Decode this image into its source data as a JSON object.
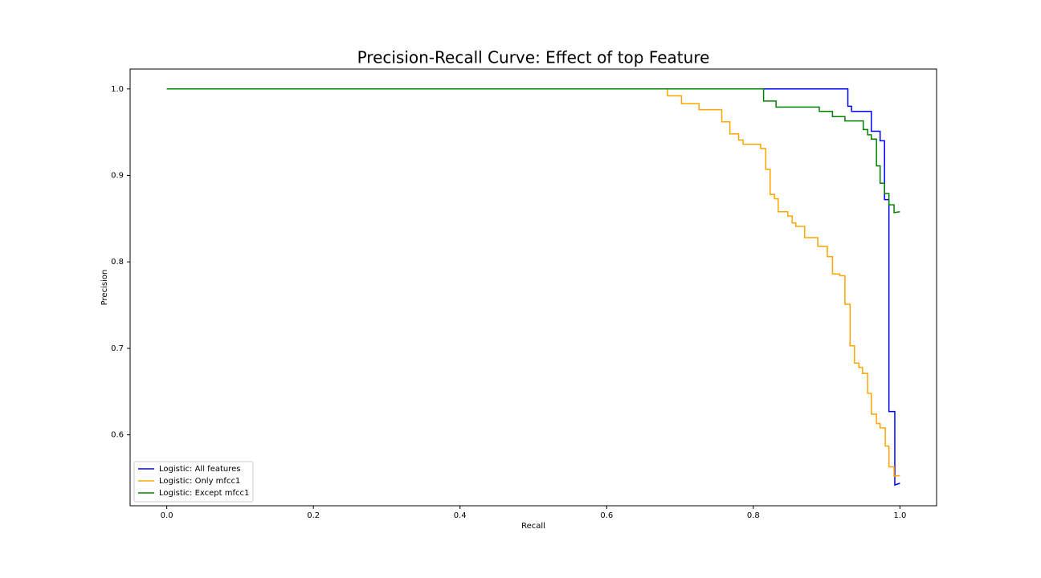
{
  "chart_data": {
    "type": "line",
    "title": "Precision-Recall Curve: Effect of top Feature",
    "x_label": "Recall",
    "y_label": "Precision",
    "xlim": [
      -0.05,
      1.05
    ],
    "ylim": [
      0.518,
      1.023
    ],
    "xticks": [
      {
        "value": 0,
        "label": "0.0"
      },
      0.2,
      0.4,
      0.6,
      0.8,
      {
        "value": 1,
        "label": "1.0"
      }
    ],
    "yticks": [
      0.6,
      0.7,
      0.8,
      0.9,
      {
        "value": 1,
        "label": "1.0"
      }
    ],
    "grid": false,
    "legend": "lower left",
    "series": [
      {
        "name": "Logistic: All features",
        "color": "#0000ff",
        "x": [
          0,
          0.929,
          0.929,
          0.934,
          0.934,
          0.961,
          0.961,
          0.973,
          0.973,
          0.979,
          0.979,
          0.985,
          0.985,
          0.993,
          0.993,
          1.0
        ],
        "values": [
          1,
          1,
          0.98,
          0.98,
          0.974,
          0.974,
          0.951,
          0.951,
          0.94,
          0.94,
          0.872,
          0.872,
          0.627,
          0.627,
          0.542,
          0.544
        ]
      },
      {
        "name": "Logistic: Only mfcc1",
        "color": "#ffa500",
        "x": [
          0,
          0.683,
          0.683,
          0.702,
          0.702,
          0.726,
          0.726,
          0.757,
          0.757,
          0.768,
          0.768,
          0.78,
          0.78,
          0.786,
          0.786,
          0.81,
          0.81,
          0.817,
          0.817,
          0.823,
          0.823,
          0.829,
          0.829,
          0.834,
          0.834,
          0.847,
          0.847,
          0.853,
          0.853,
          0.858,
          0.858,
          0.87,
          0.87,
          0.888,
          0.888,
          0.901,
          0.901,
          0.908,
          0.908,
          0.918,
          0.918,
          0.925,
          0.925,
          0.932,
          0.932,
          0.938,
          0.938,
          0.944,
          0.944,
          0.949,
          0.949,
          0.956,
          0.956,
          0.961,
          0.961,
          0.968,
          0.968,
          0.973,
          0.973,
          0.98,
          0.98,
          0.985,
          0.985,
          0.992,
          0.992,
          1.0
        ],
        "values": [
          1,
          1,
          0.992,
          0.992,
          0.983,
          0.983,
          0.976,
          0.976,
          0.962,
          0.962,
          0.948,
          0.948,
          0.941,
          0.941,
          0.936,
          0.936,
          0.931,
          0.931,
          0.907,
          0.907,
          0.878,
          0.878,
          0.873,
          0.873,
          0.858,
          0.858,
          0.853,
          0.853,
          0.845,
          0.845,
          0.841,
          0.841,
          0.828,
          0.828,
          0.818,
          0.818,
          0.806,
          0.806,
          0.786,
          0.786,
          0.784,
          0.784,
          0.751,
          0.751,
          0.703,
          0.703,
          0.683,
          0.683,
          0.678,
          0.678,
          0.671,
          0.671,
          0.648,
          0.648,
          0.624,
          0.624,
          0.613,
          0.613,
          0.608,
          0.608,
          0.587,
          0.587,
          0.563,
          0.563,
          0.552,
          0.553
        ]
      },
      {
        "name": "Logistic: Except mfcc1",
        "color": "#008000",
        "x": [
          0,
          0.814,
          0.814,
          0.831,
          0.831,
          0.89,
          0.89,
          0.908,
          0.908,
          0.925,
          0.925,
          0.95,
          0.95,
          0.956,
          0.956,
          0.961,
          0.961,
          0.968,
          0.968,
          0.973,
          0.973,
          0.979,
          0.979,
          0.985,
          0.985,
          0.992,
          0.992,
          1.0
        ],
        "values": [
          1,
          1,
          0.986,
          0.986,
          0.979,
          0.979,
          0.974,
          0.974,
          0.968,
          0.968,
          0.963,
          0.963,
          0.953,
          0.953,
          0.947,
          0.947,
          0.942,
          0.942,
          0.911,
          0.911,
          0.891,
          0.891,
          0.879,
          0.879,
          0.866,
          0.866,
          0.857,
          0.858
        ]
      }
    ]
  }
}
